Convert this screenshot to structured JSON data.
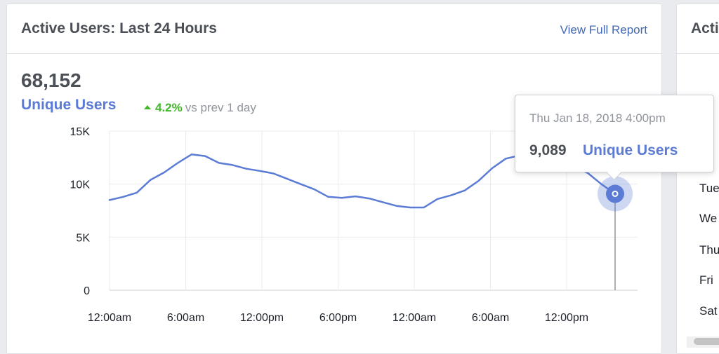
{
  "card": {
    "title": "Active Users: Last 24 Hours",
    "link_label": "View Full Report",
    "big_number": "68,152",
    "metric_label": "Unique Users",
    "delta_value": "4.2%",
    "delta_text": "vs prev 1 day"
  },
  "tooltip": {
    "date": "Thu Jan 18, 2018 4:00pm",
    "value": "9,089",
    "label": "Unique Users"
  },
  "side_card": {
    "title": "Acti",
    "rows": [
      "Tue",
      "We",
      "Thu",
      "Fri",
      "Sat"
    ]
  },
  "colors": {
    "accent": "#5b7bd5",
    "positive": "#42b72a",
    "link": "#4267b2"
  },
  "chart_data": {
    "type": "line",
    "y_ticks": [
      "15K",
      "10K",
      "5K",
      "0"
    ],
    "x_ticks": [
      "12:00am",
      "6:00am",
      "12:00pm",
      "6:00pm",
      "12:00am",
      "6:00am",
      "12:00pm"
    ],
    "ylim": [
      0,
      15000
    ],
    "series": [
      {
        "name": "Unique Users",
        "values": [
          8500,
          8800,
          9200,
          10400,
          11100,
          12000,
          12800,
          12650,
          12000,
          11800,
          11450,
          11250,
          11000,
          10500,
          10000,
          9500,
          8800,
          8700,
          8850,
          8650,
          8300,
          7950,
          7800,
          7800,
          8600,
          8950,
          9400,
          10300,
          11500,
          12400,
          12700,
          12550,
          12550,
          12200,
          11600,
          11050,
          10000,
          9089
        ]
      }
    ],
    "highlight_index": 37
  }
}
